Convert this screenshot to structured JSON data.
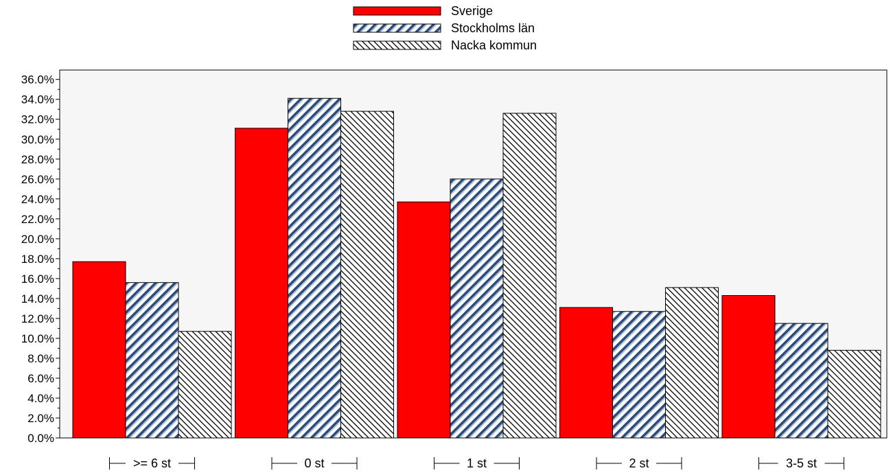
{
  "chart_data": {
    "type": "bar",
    "categories": [
      ">= 6 st",
      "0 st",
      "1 st",
      "2 st",
      "3-5 st"
    ],
    "series": [
      {
        "name": "Sverige",
        "values": [
          17.7,
          31.1,
          23.7,
          13.1,
          14.3
        ],
        "pattern": "solid",
        "color": "#ff0000"
      },
      {
        "name": "Stockholms län",
        "values": [
          15.6,
          34.1,
          26.0,
          12.7,
          11.5
        ],
        "pattern": "stripes-blue",
        "color": "#4e6e9a"
      },
      {
        "name": "Nacka kommun",
        "values": [
          10.7,
          32.8,
          32.6,
          15.1,
          8.8
        ],
        "pattern": "hatch-black",
        "color": "#000000"
      }
    ],
    "yticks": [
      "0.0%",
      "2.0%",
      "4.0%",
      "6.0%",
      "8.0%",
      "10.0%",
      "12.0%",
      "14.0%",
      "16.0%",
      "18.0%",
      "20.0%",
      "22.0%",
      "24.0%",
      "26.0%",
      "28.0%",
      "30.0%",
      "32.0%",
      "34.0%",
      "36.0%"
    ],
    "ylim": [
      0,
      37
    ],
    "grid": false,
    "legend_position": "top-center",
    "plot_background": "#f6f6f6"
  }
}
